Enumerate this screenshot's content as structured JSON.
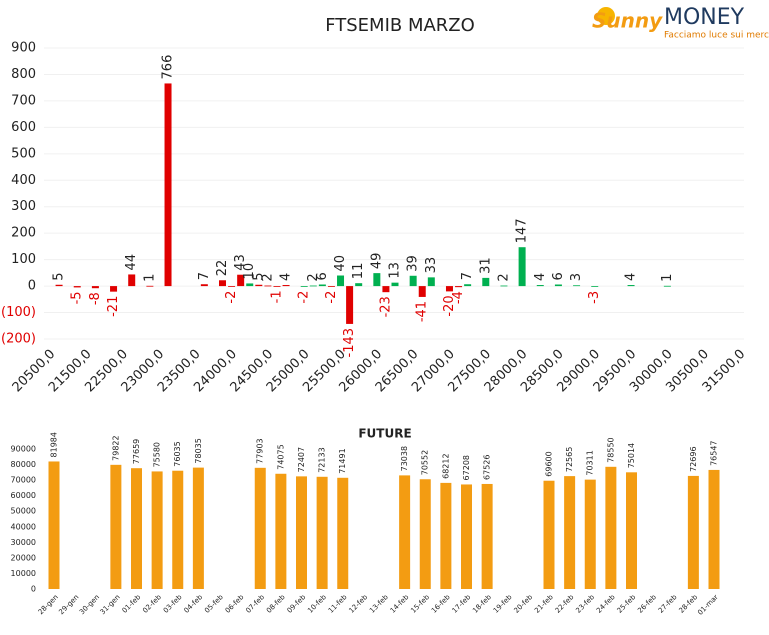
{
  "logo": {
    "brand1": "Sunny",
    "brand2": "MONEY",
    "tagline": "Facciamo luce sui mercati"
  },
  "chart_data": [
    {
      "type": "bar",
      "title": "FTSEMIB MARZO",
      "categories": [
        "20500,0",
        null,
        null,
        null,
        "21500,0",
        null,
        null,
        null,
        "22500,0",
        null,
        null,
        null,
        "23000,0",
        null,
        null,
        null,
        "23500,0",
        null,
        null,
        null,
        "24000,0",
        null,
        null,
        null,
        "24500,0",
        null,
        null,
        null,
        "25000,0",
        null,
        null,
        null,
        "25500,0",
        null,
        null,
        null,
        "26000,0",
        null,
        null,
        null,
        "26500,0",
        null,
        null,
        null,
        "27000,0",
        null,
        null,
        null,
        "27500,0",
        null,
        null,
        null,
        "28000,0",
        null,
        null,
        null,
        "28500,0",
        null,
        null,
        null,
        "29000,0",
        null,
        null,
        null,
        "29500,0",
        null,
        null,
        null,
        "30000,0",
        null,
        null,
        null,
        "30500,0",
        null,
        null,
        null,
        "31500,0"
      ],
      "values": [
        null,
        5,
        null,
        -5,
        null,
        -8,
        null,
        -21,
        null,
        44,
        null,
        1,
        null,
        766,
        null,
        null,
        null,
        7,
        null,
        22,
        -2,
        43,
        10,
        5,
        2,
        -1,
        4,
        null,
        -2,
        2,
        6,
        -2,
        40,
        -143,
        11,
        null,
        49,
        -23,
        13,
        null,
        39,
        -41,
        33,
        null,
        -20,
        -4,
        7,
        null,
        31,
        null,
        2,
        null,
        147,
        null,
        4,
        null,
        6,
        null,
        3,
        null,
        -3,
        null,
        null,
        null,
        4,
        null,
        null,
        null,
        1,
        null,
        null,
        null,
        null,
        null,
        null,
        null,
        null
      ],
      "colors": [
        null,
        "#e00000",
        null,
        "#e00000",
        null,
        "#e00000",
        null,
        "#e00000",
        null,
        "#e00000",
        null,
        "#e00000",
        null,
        "#e00000",
        null,
        null,
        null,
        "#e00000",
        null,
        "#e00000",
        "#e00000",
        "#e00000",
        "#00b050",
        "#e00000",
        "#e00000",
        "#e00000",
        "#e00000",
        null,
        "#00b050",
        "#00b050",
        "#00b050",
        "#e00000",
        "#00b050",
        "#e00000",
        "#00b050",
        null,
        "#00b050",
        "#e00000",
        "#00b050",
        null,
        "#00b050",
        "#e00000",
        "#00b050",
        null,
        "#e00000",
        "#e00000",
        "#00b050",
        null,
        "#00b050",
        null,
        "#00b050",
        null,
        "#00b050",
        null,
        "#00b050",
        null,
        "#00b050",
        null,
        "#00b050",
        null,
        "#00b050",
        null,
        null,
        null,
        "#00b050",
        null,
        null,
        null,
        "#00b050",
        null,
        null,
        null,
        null,
        null,
        null,
        null,
        null
      ],
      "ylim": [
        -200,
        900
      ],
      "yticks": [
        900,
        800,
        700,
        600,
        500,
        400,
        300,
        200,
        100,
        0,
        {
          "value": -100,
          "label": "(100)"
        },
        {
          "value": -200,
          "label": "(200)"
        }
      ],
      "grid": true
    },
    {
      "type": "bar",
      "title": "FUTURE",
      "categories": [
        "28-gen",
        "29-gen",
        "30-gen",
        "31-gen",
        "01-feb",
        "02-feb",
        "03-feb",
        "04-feb",
        "05-feb",
        "06-feb",
        "07-feb",
        "08-feb",
        "09-feb",
        "10-feb",
        "11-feb",
        "12-feb",
        "13-feb",
        "14-feb",
        "15-feb",
        "16-feb",
        "17-feb",
        "18-feb",
        "19-feb",
        "20-feb",
        "21-feb",
        "22-feb",
        "23-feb",
        "24-feb",
        "25-feb",
        "26-feb",
        "27-feb",
        "28-feb",
        "01-mar"
      ],
      "values": [
        81984,
        null,
        null,
        79822,
        77659,
        75580,
        76035,
        78035,
        null,
        null,
        77903,
        74075,
        72407,
        72133,
        71491,
        null,
        null,
        73038,
        70552,
        68212,
        67208,
        67526,
        null,
        null,
        69600,
        72565,
        70311,
        78550,
        75014,
        null,
        null,
        72696,
        76547
      ],
      "color": "#f39c12",
      "ylim": [
        0,
        90000
      ],
      "yticks": [
        0,
        10000,
        20000,
        30000,
        40000,
        50000,
        60000,
        70000,
        80000,
        90000
      ],
      "grid": false
    }
  ]
}
